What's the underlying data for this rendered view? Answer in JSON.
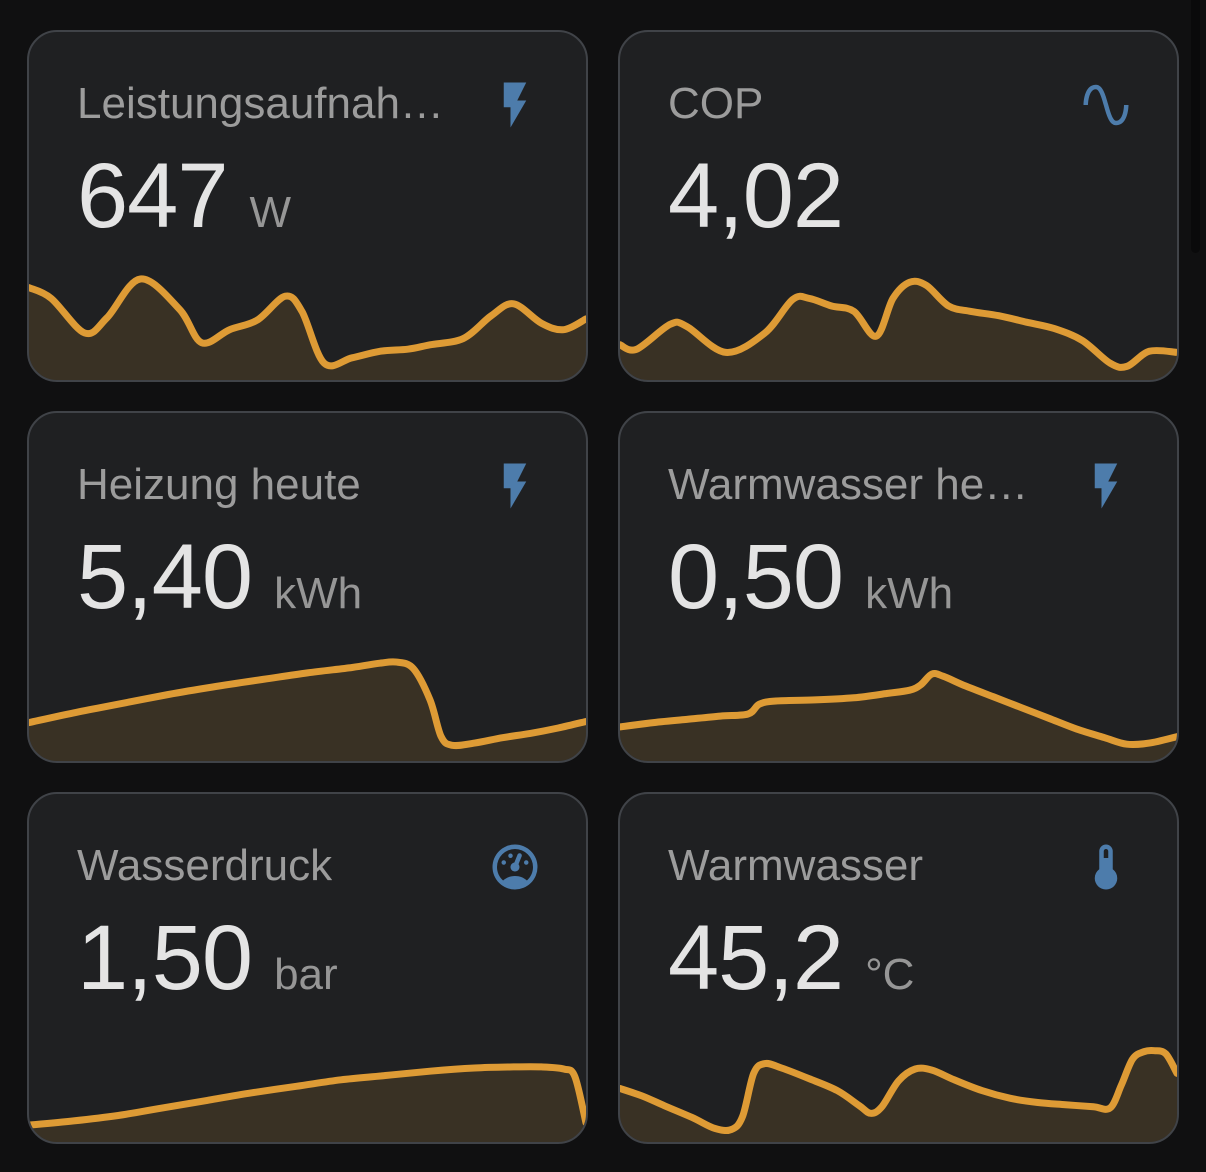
{
  "theme": {
    "page_background": "#101011",
    "card_background": "#1f2022",
    "card_border": "#404348",
    "title_color": "#9c9c9c",
    "value_color": "#e4e4e4",
    "unit_color": "#969696",
    "icon_color": "#4d7cab",
    "graph_line_color": "#de9b35",
    "graph_fill_color": "rgba(222,156,53,0.14)"
  },
  "scrollbar": {
    "visible": true
  },
  "cards": [
    {
      "title": "Leistungsaufnah…",
      "value": "647",
      "unit": "W",
      "icon": "flash-icon"
    },
    {
      "title": "COP",
      "value": "4,02",
      "unit": "",
      "icon": "sine-wave-icon"
    },
    {
      "title": "Heizung heute",
      "value": "5,40",
      "unit": "kWh",
      "icon": "flash-icon"
    },
    {
      "title": "Warmwasser he…",
      "value": "0,50",
      "unit": "kWh",
      "icon": "flash-icon"
    },
    {
      "title": "Wasserdruck",
      "value": "1,50",
      "unit": "bar",
      "icon": "gauge-icon"
    },
    {
      "title": "Warmwasser",
      "value": "45,2",
      "unit": "°C",
      "icon": "thermometer-icon"
    }
  ],
  "chart_data": [
    {
      "type": "area",
      "name": "Leistungsaufnah…",
      "current": "647 W",
      "axes": "none (sparkline, y normalized 0-100 of graph height)",
      "x_pct": [
        0,
        4,
        10,
        14,
        20,
        27,
        31,
        36,
        41,
        46,
        49,
        53,
        58,
        63,
        68,
        72,
        78,
        83,
        87,
        92,
        96,
        100
      ],
      "y_pct": [
        80,
        70,
        38,
        52,
        88,
        60,
        29,
        41,
        50,
        72,
        58,
        10,
        15,
        21,
        23,
        27,
        33,
        54,
        65,
        47,
        41,
        51
      ]
    },
    {
      "type": "area",
      "name": "COP",
      "current": "4,02",
      "axes": "none (sparkline, y normalized 0-100 of graph height)",
      "x_pct": [
        0,
        3,
        9,
        12,
        19,
        26,
        31,
        34,
        38,
        42,
        46,
        49,
        52,
        55,
        59,
        63,
        68,
        73,
        78,
        83,
        88,
        91,
        95,
        100
      ],
      "y_pct": [
        27,
        23,
        46,
        44,
        20,
        38,
        69,
        70,
        63,
        58,
        35,
        70,
        85,
        82,
        63,
        58,
        54,
        48,
        42,
        31,
        10,
        7,
        21,
        20
      ]
    },
    {
      "type": "area",
      "name": "Heizung heute",
      "current": "5,40 kWh",
      "axes": "none (sparkline, y normalized 0-100 of graph height)",
      "x_pct": [
        0,
        8,
        16,
        25,
        33,
        42,
        50,
        58,
        63,
        66,
        69,
        72,
        74,
        76,
        80,
        85,
        90,
        95,
        100
      ],
      "y_pct": [
        30,
        39,
        47,
        56,
        63,
        70,
        76,
        81,
        85,
        86,
        80,
        51,
        17,
        9,
        11,
        16,
        20,
        25,
        31
      ]
    },
    {
      "type": "area",
      "name": "Warmwasser he…",
      "current": "0,50 kWh",
      "axes": "none (sparkline, y normalized 0-100 of graph height)",
      "x_pct": [
        0,
        6,
        12,
        18,
        23,
        25,
        28,
        35,
        42,
        48,
        52,
        54,
        56,
        58,
        62,
        67,
        72,
        77,
        82,
        87,
        91,
        95,
        100
      ],
      "y_pct": [
        26,
        30,
        33,
        36,
        38,
        47,
        50,
        51,
        53,
        57,
        60,
        65,
        75,
        73,
        64,
        54,
        44,
        34,
        24,
        16,
        10,
        11,
        17
      ]
    },
    {
      "type": "area",
      "name": "Wasserdruck",
      "current": "1,50 bar",
      "axes": "none (sparkline, y normalized 0-100 of graph height)",
      "x_pct": [
        0,
        8,
        16,
        24,
        32,
        40,
        48,
        56,
        64,
        72,
        80,
        87,
        92,
        96,
        98,
        100
      ],
      "y_pct": [
        10,
        14,
        19,
        26,
        33,
        40,
        46,
        52,
        56,
        60,
        63,
        64,
        64,
        62,
        55,
        12
      ]
    },
    {
      "type": "area",
      "name": "Warmwasser",
      "current": "45,2 °C",
      "axes": "none (sparkline, y normalized 0-100 of graph height)",
      "x_pct": [
        0,
        4,
        8,
        13,
        17,
        20,
        22,
        24,
        26,
        29,
        34,
        39,
        43,
        45,
        47,
        50,
        53,
        56,
        60,
        65,
        70,
        75,
        80,
        85,
        88,
        90,
        92,
        94,
        96,
        98,
        100
      ],
      "y_pct": [
        44,
        37,
        28,
        17,
        7,
        6,
        18,
        58,
        67,
        63,
        53,
        42,
        28,
        21,
        27,
        51,
        62,
        61,
        52,
        42,
        35,
        31,
        29,
        27,
        26,
        47,
        71,
        78,
        79,
        76,
        58
      ]
    }
  ]
}
